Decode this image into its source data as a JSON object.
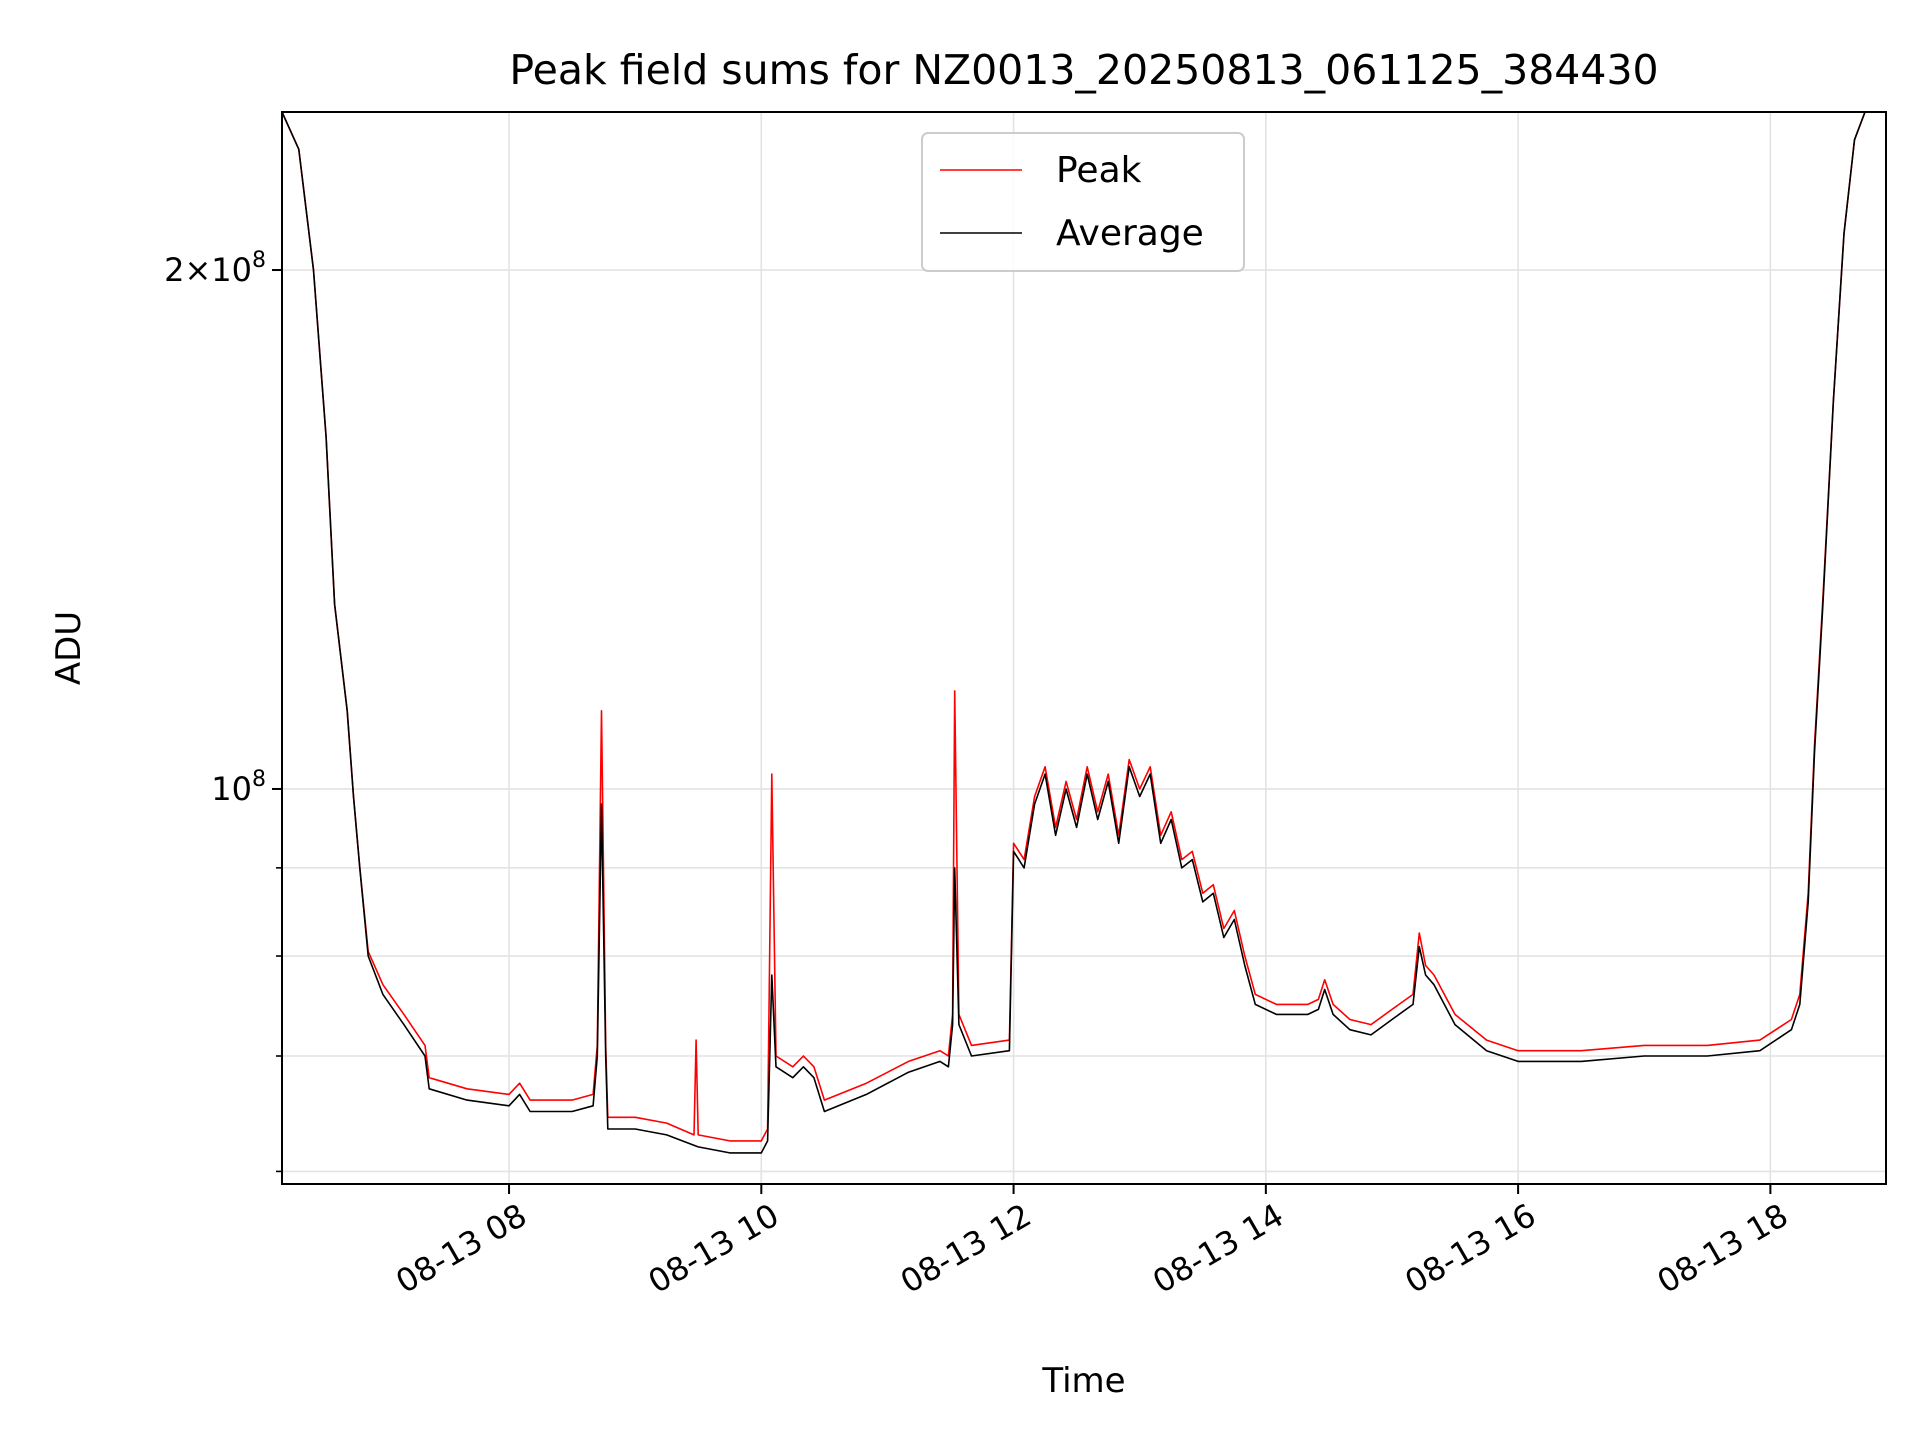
{
  "chart_data": {
    "type": "line",
    "title": "Peak field sums for NZ0013_20250813_061125_384430",
    "xlabel": "Time",
    "ylabel": "ADU",
    "x_type": "time",
    "x_range": [
      "2025-08-13 06:12",
      "2025-08-13 18:55"
    ],
    "x_ticks": [
      {
        "value": "2025-08-13 08:00",
        "label": "08-13 08"
      },
      {
        "value": "2025-08-13 10:00",
        "label": "08-13 10"
      },
      {
        "value": "2025-08-13 12:00",
        "label": "08-13 12"
      },
      {
        "value": "2025-08-13 14:00",
        "label": "08-13 14"
      },
      {
        "value": "2025-08-13 16:00",
        "label": "08-13 16"
      },
      {
        "value": "2025-08-13 18:00",
        "label": "08-13 18"
      }
    ],
    "y_scale": "log",
    "ylim": [
      59000000,
      247000000
    ],
    "y_ticks_major": [
      {
        "value": 100000000,
        "base": "10",
        "exp": "8",
        "mantissa": ""
      },
      {
        "value": 200000000,
        "base": "10",
        "exp": "8",
        "mantissa": "2"
      }
    ],
    "y_ticks_minor": [
      60000000,
      70000000,
      80000000,
      90000000
    ],
    "grid": true,
    "legend": {
      "position": "top-center",
      "entries": [
        {
          "name": "Peak",
          "color": "#ff0000"
        },
        {
          "name": "Average",
          "color": "#000000"
        }
      ]
    },
    "series": [
      {
        "name": "Average",
        "color": "#000000",
        "points": [
          [
            "2025-08-13 06:12",
            247000000
          ],
          [
            "2025-08-13 06:20",
            235000000
          ],
          [
            "2025-08-13 06:27",
            200000000
          ],
          [
            "2025-08-13 06:33",
            160000000
          ],
          [
            "2025-08-13 06:37",
            128000000
          ],
          [
            "2025-08-13 06:43",
            111000000
          ],
          [
            "2025-08-13 06:46",
            99000000
          ],
          [
            "2025-08-13 06:49",
            90000000
          ],
          [
            "2025-08-13 06:53",
            80000000
          ],
          [
            "2025-08-13 07:00",
            76000000
          ],
          [
            "2025-08-13 07:10",
            73000000
          ],
          [
            "2025-08-13 07:20",
            70000000
          ],
          [
            "2025-08-13 07:22",
            67000000
          ],
          [
            "2025-08-13 07:40",
            66000000
          ],
          [
            "2025-08-13 08:00",
            65500000
          ],
          [
            "2025-08-13 08:05",
            66500000
          ],
          [
            "2025-08-13 08:10",
            65000000
          ],
          [
            "2025-08-13 08:30",
            65000000
          ],
          [
            "2025-08-13 08:40",
            65500000
          ],
          [
            "2025-08-13 08:42",
            70000000
          ],
          [
            "2025-08-13 08:44",
            98000000
          ],
          [
            "2025-08-13 08:46",
            70000000
          ],
          [
            "2025-08-13 08:47",
            63500000
          ],
          [
            "2025-08-13 09:00",
            63500000
          ],
          [
            "2025-08-13 09:15",
            63000000
          ],
          [
            "2025-08-13 09:30",
            62000000
          ],
          [
            "2025-08-13 09:45",
            61500000
          ],
          [
            "2025-08-13 10:00",
            61500000
          ],
          [
            "2025-08-13 10:03",
            62500000
          ],
          [
            "2025-08-13 10:05",
            78000000
          ],
          [
            "2025-08-13 10:07",
            69000000
          ],
          [
            "2025-08-13 10:15",
            68000000
          ],
          [
            "2025-08-13 10:20",
            69000000
          ],
          [
            "2025-08-13 10:25",
            68000000
          ],
          [
            "2025-08-13 10:30",
            65000000
          ],
          [
            "2025-08-13 10:50",
            66500000
          ],
          [
            "2025-08-13 11:10",
            68500000
          ],
          [
            "2025-08-13 11:25",
            69500000
          ],
          [
            "2025-08-13 11:29",
            69000000
          ],
          [
            "2025-08-13 11:31",
            73000000
          ],
          [
            "2025-08-13 11:32",
            90000000
          ],
          [
            "2025-08-13 11:34",
            73000000
          ],
          [
            "2025-08-13 11:40",
            70000000
          ],
          [
            "2025-08-13 11:58",
            70500000
          ],
          [
            "2025-08-13 12:00",
            92000000
          ],
          [
            "2025-08-13 12:05",
            90000000
          ],
          [
            "2025-08-13 12:10",
            98000000
          ],
          [
            "2025-08-13 12:15",
            102000000
          ],
          [
            "2025-08-13 12:20",
            94000000
          ],
          [
            "2025-08-13 12:25",
            100000000
          ],
          [
            "2025-08-13 12:30",
            95000000
          ],
          [
            "2025-08-13 12:35",
            102000000
          ],
          [
            "2025-08-13 12:40",
            96000000
          ],
          [
            "2025-08-13 12:45",
            101000000
          ],
          [
            "2025-08-13 12:50",
            93000000
          ],
          [
            "2025-08-13 12:55",
            103000000
          ],
          [
            "2025-08-13 13:00",
            99000000
          ],
          [
            "2025-08-13 13:05",
            102000000
          ],
          [
            "2025-08-13 13:10",
            93000000
          ],
          [
            "2025-08-13 13:15",
            96000000
          ],
          [
            "2025-08-13 13:20",
            90000000
          ],
          [
            "2025-08-13 13:25",
            91000000
          ],
          [
            "2025-08-13 13:30",
            86000000
          ],
          [
            "2025-08-13 13:35",
            87000000
          ],
          [
            "2025-08-13 13:40",
            82000000
          ],
          [
            "2025-08-13 13:45",
            84000000
          ],
          [
            "2025-08-13 13:50",
            79000000
          ],
          [
            "2025-08-13 13:55",
            75000000
          ],
          [
            "2025-08-13 14:05",
            74000000
          ],
          [
            "2025-08-13 14:20",
            74000000
          ],
          [
            "2025-08-13 14:25",
            74500000
          ],
          [
            "2025-08-13 14:28",
            76500000
          ],
          [
            "2025-08-13 14:32",
            74000000
          ],
          [
            "2025-08-13 14:40",
            72500000
          ],
          [
            "2025-08-13 14:50",
            72000000
          ],
          [
            "2025-08-13 15:00",
            73500000
          ],
          [
            "2025-08-13 15:10",
            75000000
          ],
          [
            "2025-08-13 15:13",
            81000000
          ],
          [
            "2025-08-13 15:16",
            78000000
          ],
          [
            "2025-08-13 15:20",
            77000000
          ],
          [
            "2025-08-13 15:30",
            73000000
          ],
          [
            "2025-08-13 15:45",
            70500000
          ],
          [
            "2025-08-13 16:00",
            69500000
          ],
          [
            "2025-08-13 16:30",
            69500000
          ],
          [
            "2025-08-13 17:00",
            70000000
          ],
          [
            "2025-08-13 17:30",
            70000000
          ],
          [
            "2025-08-13 17:55",
            70500000
          ],
          [
            "2025-08-13 18:10",
            72500000
          ],
          [
            "2025-08-13 18:14",
            75000000
          ],
          [
            "2025-08-13 18:18",
            86000000
          ],
          [
            "2025-08-13 18:21",
            105000000
          ],
          [
            "2025-08-13 18:25",
            128000000
          ],
          [
            "2025-08-13 18:30",
            168000000
          ],
          [
            "2025-08-13 18:35",
            210000000
          ],
          [
            "2025-08-13 18:40",
            238000000
          ],
          [
            "2025-08-13 18:45",
            247000000
          ]
        ]
      },
      {
        "name": "Peak",
        "color": "#ff0000",
        "points": [
          [
            "2025-08-13 06:12",
            247000000
          ],
          [
            "2025-08-13 06:20",
            235000000
          ],
          [
            "2025-08-13 06:27",
            200000000
          ],
          [
            "2025-08-13 06:33",
            160000000
          ],
          [
            "2025-08-13 06:37",
            128000000
          ],
          [
            "2025-08-13 06:43",
            111000000
          ],
          [
            "2025-08-13 06:46",
            99000000
          ],
          [
            "2025-08-13 06:49",
            90000000
          ],
          [
            "2025-08-13 06:53",
            80500000
          ],
          [
            "2025-08-13 07:00",
            77000000
          ],
          [
            "2025-08-13 07:10",
            74000000
          ],
          [
            "2025-08-13 07:20",
            71000000
          ],
          [
            "2025-08-13 07:22",
            68000000
          ],
          [
            "2025-08-13 07:40",
            67000000
          ],
          [
            "2025-08-13 08:00",
            66500000
          ],
          [
            "2025-08-13 08:05",
            67500000
          ],
          [
            "2025-08-13 08:10",
            66000000
          ],
          [
            "2025-08-13 08:30",
            66000000
          ],
          [
            "2025-08-13 08:40",
            66500000
          ],
          [
            "2025-08-13 08:42",
            71000000
          ],
          [
            "2025-08-13 08:44",
            111000000
          ],
          [
            "2025-08-13 08:46",
            71000000
          ],
          [
            "2025-08-13 08:47",
            64500000
          ],
          [
            "2025-08-13 09:00",
            64500000
          ],
          [
            "2025-08-13 09:15",
            64000000
          ],
          [
            "2025-08-13 09:28",
            63000000
          ],
          [
            "2025-08-13 09:29",
            71500000
          ],
          [
            "2025-08-13 09:30",
            63000000
          ],
          [
            "2025-08-13 09:45",
            62500000
          ],
          [
            "2025-08-13 10:00",
            62500000
          ],
          [
            "2025-08-13 10:03",
            63500000
          ],
          [
            "2025-08-13 10:05",
            102000000
          ],
          [
            "2025-08-13 10:07",
            70000000
          ],
          [
            "2025-08-13 10:15",
            69000000
          ],
          [
            "2025-08-13 10:20",
            70000000
          ],
          [
            "2025-08-13 10:25",
            69000000
          ],
          [
            "2025-08-13 10:30",
            66000000
          ],
          [
            "2025-08-13 10:50",
            67500000
          ],
          [
            "2025-08-13 11:10",
            69500000
          ],
          [
            "2025-08-13 11:25",
            70500000
          ],
          [
            "2025-08-13 11:29",
            70000000
          ],
          [
            "2025-08-13 11:31",
            74000000
          ],
          [
            "2025-08-13 11:32",
            114000000
          ],
          [
            "2025-08-13 11:34",
            74000000
          ],
          [
            "2025-08-13 11:40",
            71000000
          ],
          [
            "2025-08-13 11:58",
            71500000
          ],
          [
            "2025-08-13 12:00",
            93000000
          ],
          [
            "2025-08-13 12:05",
            91000000
          ],
          [
            "2025-08-13 12:10",
            99000000
          ],
          [
            "2025-08-13 12:15",
            103000000
          ],
          [
            "2025-08-13 12:20",
            95000000
          ],
          [
            "2025-08-13 12:25",
            101000000
          ],
          [
            "2025-08-13 12:30",
            96000000
          ],
          [
            "2025-08-13 12:35",
            103000000
          ],
          [
            "2025-08-13 12:40",
            97000000
          ],
          [
            "2025-08-13 12:45",
            102000000
          ],
          [
            "2025-08-13 12:50",
            94000000
          ],
          [
            "2025-08-13 12:55",
            104000000
          ],
          [
            "2025-08-13 13:00",
            100000000
          ],
          [
            "2025-08-13 13:05",
            103000000
          ],
          [
            "2025-08-13 13:10",
            94000000
          ],
          [
            "2025-08-13 13:15",
            97000000
          ],
          [
            "2025-08-13 13:20",
            91000000
          ],
          [
            "2025-08-13 13:25",
            92000000
          ],
          [
            "2025-08-13 13:30",
            87000000
          ],
          [
            "2025-08-13 13:35",
            88000000
          ],
          [
            "2025-08-13 13:40",
            83000000
          ],
          [
            "2025-08-13 13:45",
            85000000
          ],
          [
            "2025-08-13 13:50",
            80000000
          ],
          [
            "2025-08-13 13:55",
            76000000
          ],
          [
            "2025-08-13 14:05",
            75000000
          ],
          [
            "2025-08-13 14:20",
            75000000
          ],
          [
            "2025-08-13 14:25",
            75500000
          ],
          [
            "2025-08-13 14:28",
            77500000
          ],
          [
            "2025-08-13 14:32",
            75000000
          ],
          [
            "2025-08-13 14:40",
            73500000
          ],
          [
            "2025-08-13 14:50",
            73000000
          ],
          [
            "2025-08-13 15:00",
            74500000
          ],
          [
            "2025-08-13 15:10",
            76000000
          ],
          [
            "2025-08-13 15:13",
            82500000
          ],
          [
            "2025-08-13 15:16",
            79000000
          ],
          [
            "2025-08-13 15:20",
            78000000
          ],
          [
            "2025-08-13 15:30",
            74000000
          ],
          [
            "2025-08-13 15:45",
            71500000
          ],
          [
            "2025-08-13 16:00",
            70500000
          ],
          [
            "2025-08-13 16:30",
            70500000
          ],
          [
            "2025-08-13 17:00",
            71000000
          ],
          [
            "2025-08-13 17:30",
            71000000
          ],
          [
            "2025-08-13 17:55",
            71500000
          ],
          [
            "2025-08-13 18:10",
            73500000
          ],
          [
            "2025-08-13 18:14",
            76000000
          ],
          [
            "2025-08-13 18:18",
            87000000
          ],
          [
            "2025-08-13 18:21",
            106000000
          ],
          [
            "2025-08-13 18:25",
            129000000
          ],
          [
            "2025-08-13 18:30",
            168000000
          ],
          [
            "2025-08-13 18:35",
            210000000
          ],
          [
            "2025-08-13 18:40",
            238000000
          ],
          [
            "2025-08-13 18:45",
            247000000
          ]
        ]
      }
    ]
  }
}
